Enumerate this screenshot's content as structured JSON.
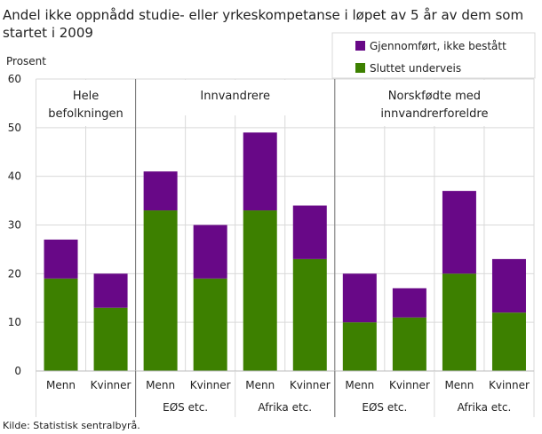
{
  "chart_data": {
    "type": "bar",
    "stacked": true,
    "title": "Andel ikke oppnådd studie- eller yrkeskompetanse i løpet av 5 år av dem som startet i 2009",
    "ylabel": "Prosent",
    "ylim": [
      0,
      60
    ],
    "yticks": [
      0,
      10,
      20,
      30,
      40,
      50,
      60
    ],
    "grid": true,
    "legend_position": "top-right",
    "groups": [
      {
        "label": "Hele befolkningen",
        "span": 2
      },
      {
        "label": "Innvandrere",
        "span": 4
      },
      {
        "label": "Norskfødte med innvandrerforeldre",
        "span": 4
      }
    ],
    "subgroups": [
      {
        "label": "",
        "span": 2
      },
      {
        "label": "EØS etc.",
        "span": 2
      },
      {
        "label": "Afrika etc.",
        "span": 2
      },
      {
        "label": "EØS etc.",
        "span": 2
      },
      {
        "label": "Afrika etc.",
        "span": 2
      }
    ],
    "categories": [
      "Menn",
      "Kvinner",
      "Menn",
      "Kvinner",
      "Menn",
      "Kvinner",
      "Menn",
      "Kvinner",
      "Menn",
      "Kvinner"
    ],
    "series": [
      {
        "name": "Sluttet underveis",
        "color": "#3d8000",
        "values": [
          19,
          13,
          33,
          19,
          33,
          23,
          10,
          11,
          20,
          12
        ]
      },
      {
        "name": "Gjennomført, ikke bestått",
        "color": "#680887",
        "values": [
          8,
          7,
          8,
          11,
          16,
          11,
          10,
          6,
          17,
          11
        ]
      }
    ]
  },
  "source": "Kilde: Statistisk sentralbyrå."
}
